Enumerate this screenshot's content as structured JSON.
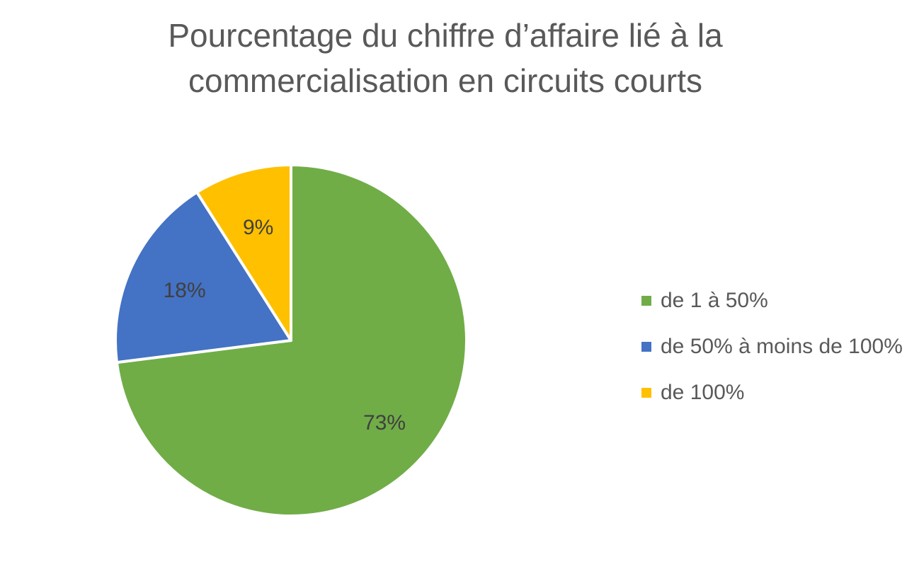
{
  "chart_data": {
    "type": "pie",
    "title_lines": [
      "Pourcentage du chiffre d’affaire lié à la",
      "commercialisation en circuits courts"
    ],
    "categories": [
      "de 1 à 50%",
      "de 50% à moins de 100%",
      "de 100%"
    ],
    "values": [
      73,
      18,
      9
    ],
    "data_labels": [
      "73%",
      "18%",
      "9%"
    ],
    "colors": [
      "#70AD47",
      "#4472C4",
      "#FFC000"
    ],
    "legend_position": "right",
    "start_angle": "top",
    "direction": "clockwise"
  }
}
